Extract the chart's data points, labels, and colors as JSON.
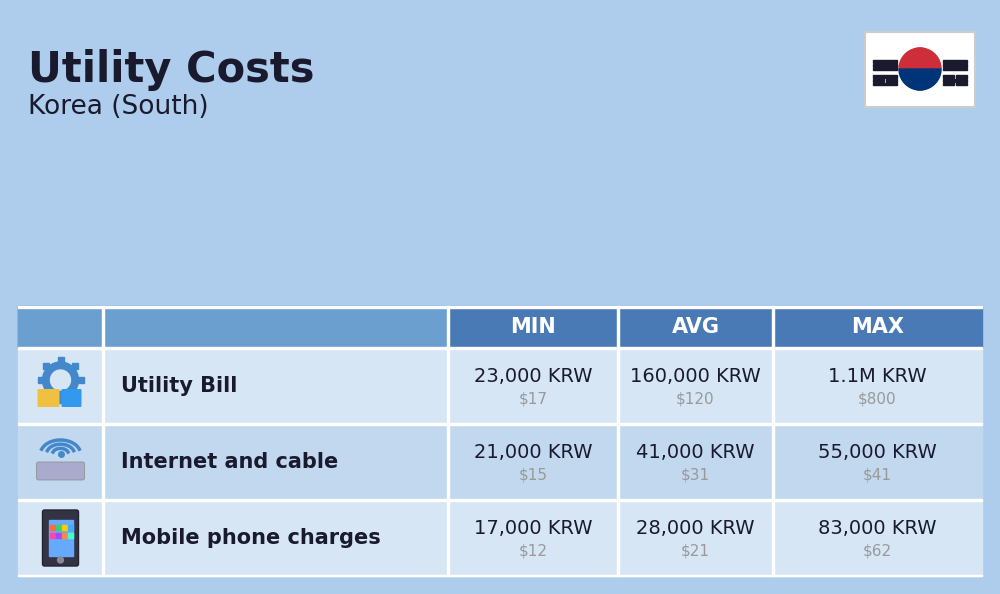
{
  "title": "Utility Costs",
  "subtitle": "Korea (South)",
  "background_color": "#aecceb",
  "header_bg_color": "#4a7ab5",
  "header_text_color": "#ffffff",
  "header_icon_bg": "#6a9fd0",
  "row_bg_colors": [
    "#d6e6f5",
    "#c2d8ef"
  ],
  "table_border_color": "#ffffff",
  "rows": [
    {
      "label": "Utility Bill",
      "min_krw": "23,000 KRW",
      "min_usd": "$17",
      "avg_krw": "160,000 KRW",
      "avg_usd": "$120",
      "max_krw": "1.1M KRW",
      "max_usd": "$800"
    },
    {
      "label": "Internet and cable",
      "min_krw": "21,000 KRW",
      "min_usd": "$15",
      "avg_krw": "41,000 KRW",
      "avg_usd": "$31",
      "max_krw": "55,000 KRW",
      "max_usd": "$41"
    },
    {
      "label": "Mobile phone charges",
      "min_krw": "17,000 KRW",
      "min_usd": "$12",
      "avg_krw": "28,000 KRW",
      "avg_usd": "$21",
      "max_krw": "83,000 KRW",
      "max_usd": "$62"
    }
  ],
  "label_color": "#1a1a2e",
  "krw_color": "#1a1a2e",
  "usd_color": "#999999",
  "title_fontsize": 30,
  "subtitle_fontsize": 19,
  "header_fontsize": 15,
  "label_fontsize": 15,
  "krw_fontsize": 14,
  "usd_fontsize": 11
}
